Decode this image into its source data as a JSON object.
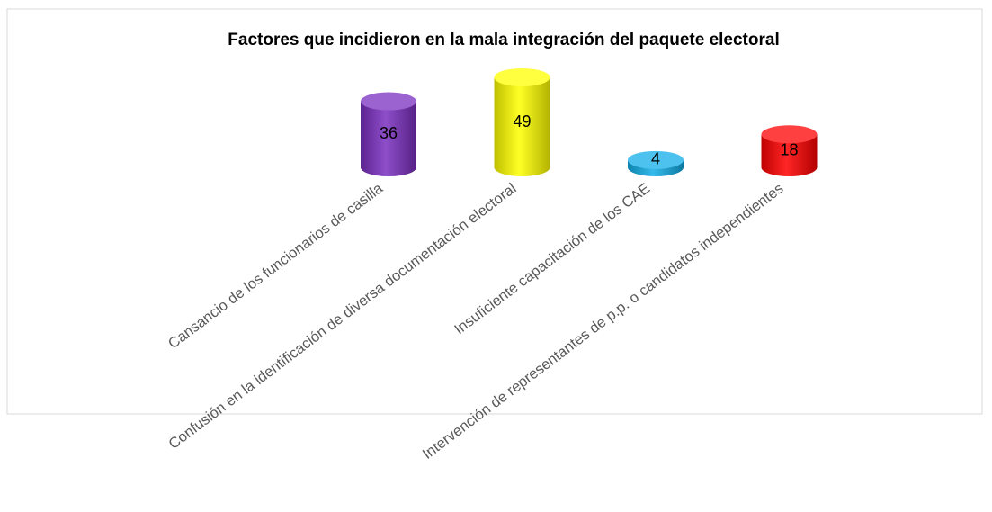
{
  "chart_data": {
    "type": "bar3d",
    "title": "Factores que incidieron en la mala integración del paquete electoral",
    "categories": [
      "Cansancio de los funcionarios de casilla",
      "Confusión en la identificación de diversa documentación electoral",
      "Insuficiente capacitación de los CAE",
      "Intervención de representantes de p.p. o candidatos independientes"
    ],
    "values": [
      36,
      49,
      4,
      18
    ],
    "colors": [
      "#7a2fc0",
      "#ffff00",
      "#11aee8",
      "#ff0000"
    ]
  }
}
